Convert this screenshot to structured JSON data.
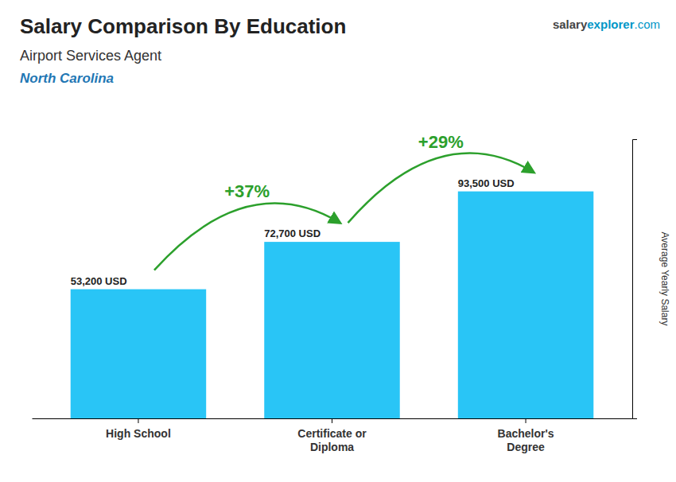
{
  "chart_data": {
    "type": "bar",
    "title": "Salary Comparison By Education",
    "subtitle": [
      "Airport Services Agent",
      "North Carolina"
    ],
    "ylabel": "Average Yearly Salary",
    "categories": [
      "High School",
      "Certificate or\nDiploma",
      "Bachelor's\nDegree"
    ],
    "values": [
      53200,
      72700,
      93500
    ],
    "value_labels": [
      "53,200 USD",
      "72,700 USD",
      "93,500 USD"
    ],
    "data_labels": true,
    "color": "#29c5f6",
    "ylim": [
      0,
      115000
    ],
    "tick_labels": "x",
    "annotations": [
      "+37%",
      "+29%"
    ],
    "source": [
      "salary",
      "explorer",
      ".com"
    ]
  }
}
